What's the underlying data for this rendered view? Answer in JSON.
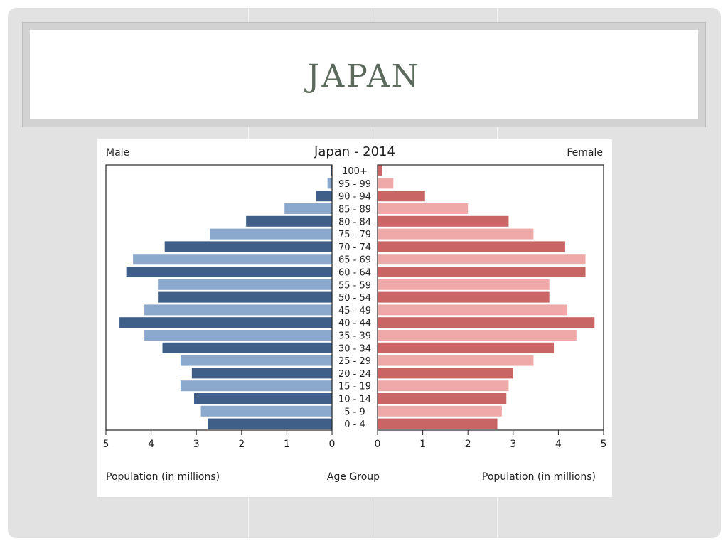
{
  "slide": {
    "title": "JAPAN"
  },
  "chart_data": {
    "type": "bar",
    "title": "Japan - 2014",
    "left_label": "Male",
    "right_label": "Female",
    "center_label": "Age Group",
    "xlabel_left": "Population (in millions)",
    "xlabel_right": "Population (in millions)",
    "xlim": [
      0,
      5
    ],
    "ticks": [
      "5",
      "4",
      "3",
      "2",
      "1",
      "0"
    ],
    "ticks_right": [
      "0",
      "1",
      "2",
      "3",
      "4",
      "5"
    ],
    "categories": [
      "0 - 4",
      "5 - 9",
      "10 - 14",
      "15 - 19",
      "20 - 24",
      "25 - 29",
      "30 - 34",
      "35 - 39",
      "40 - 44",
      "45 - 49",
      "50 - 54",
      "55 - 59",
      "60 - 64",
      "65 - 69",
      "70 - 74",
      "75 - 79",
      "80 - 84",
      "85 - 89",
      "90 - 94",
      "95 - 99",
      "100+"
    ],
    "series": [
      {
        "name": "Male",
        "values": [
          2.75,
          2.9,
          3.05,
          3.35,
          3.1,
          3.35,
          3.75,
          4.15,
          4.7,
          4.15,
          3.85,
          3.85,
          4.55,
          4.4,
          3.7,
          2.7,
          1.9,
          1.05,
          0.35,
          0.1,
          0.03
        ]
      },
      {
        "name": "Female",
        "values": [
          2.65,
          2.75,
          2.85,
          2.9,
          3.0,
          3.45,
          3.9,
          4.4,
          4.8,
          4.2,
          3.8,
          3.8,
          4.6,
          4.6,
          4.15,
          3.45,
          2.9,
          2.0,
          1.05,
          0.35,
          0.1
        ]
      }
    ],
    "colors": {
      "male_dark": "#3f5f88",
      "male_light": "#8ba9cd",
      "female_dark": "#c96565",
      "female_light": "#f0a9a9"
    },
    "grid": false
  }
}
